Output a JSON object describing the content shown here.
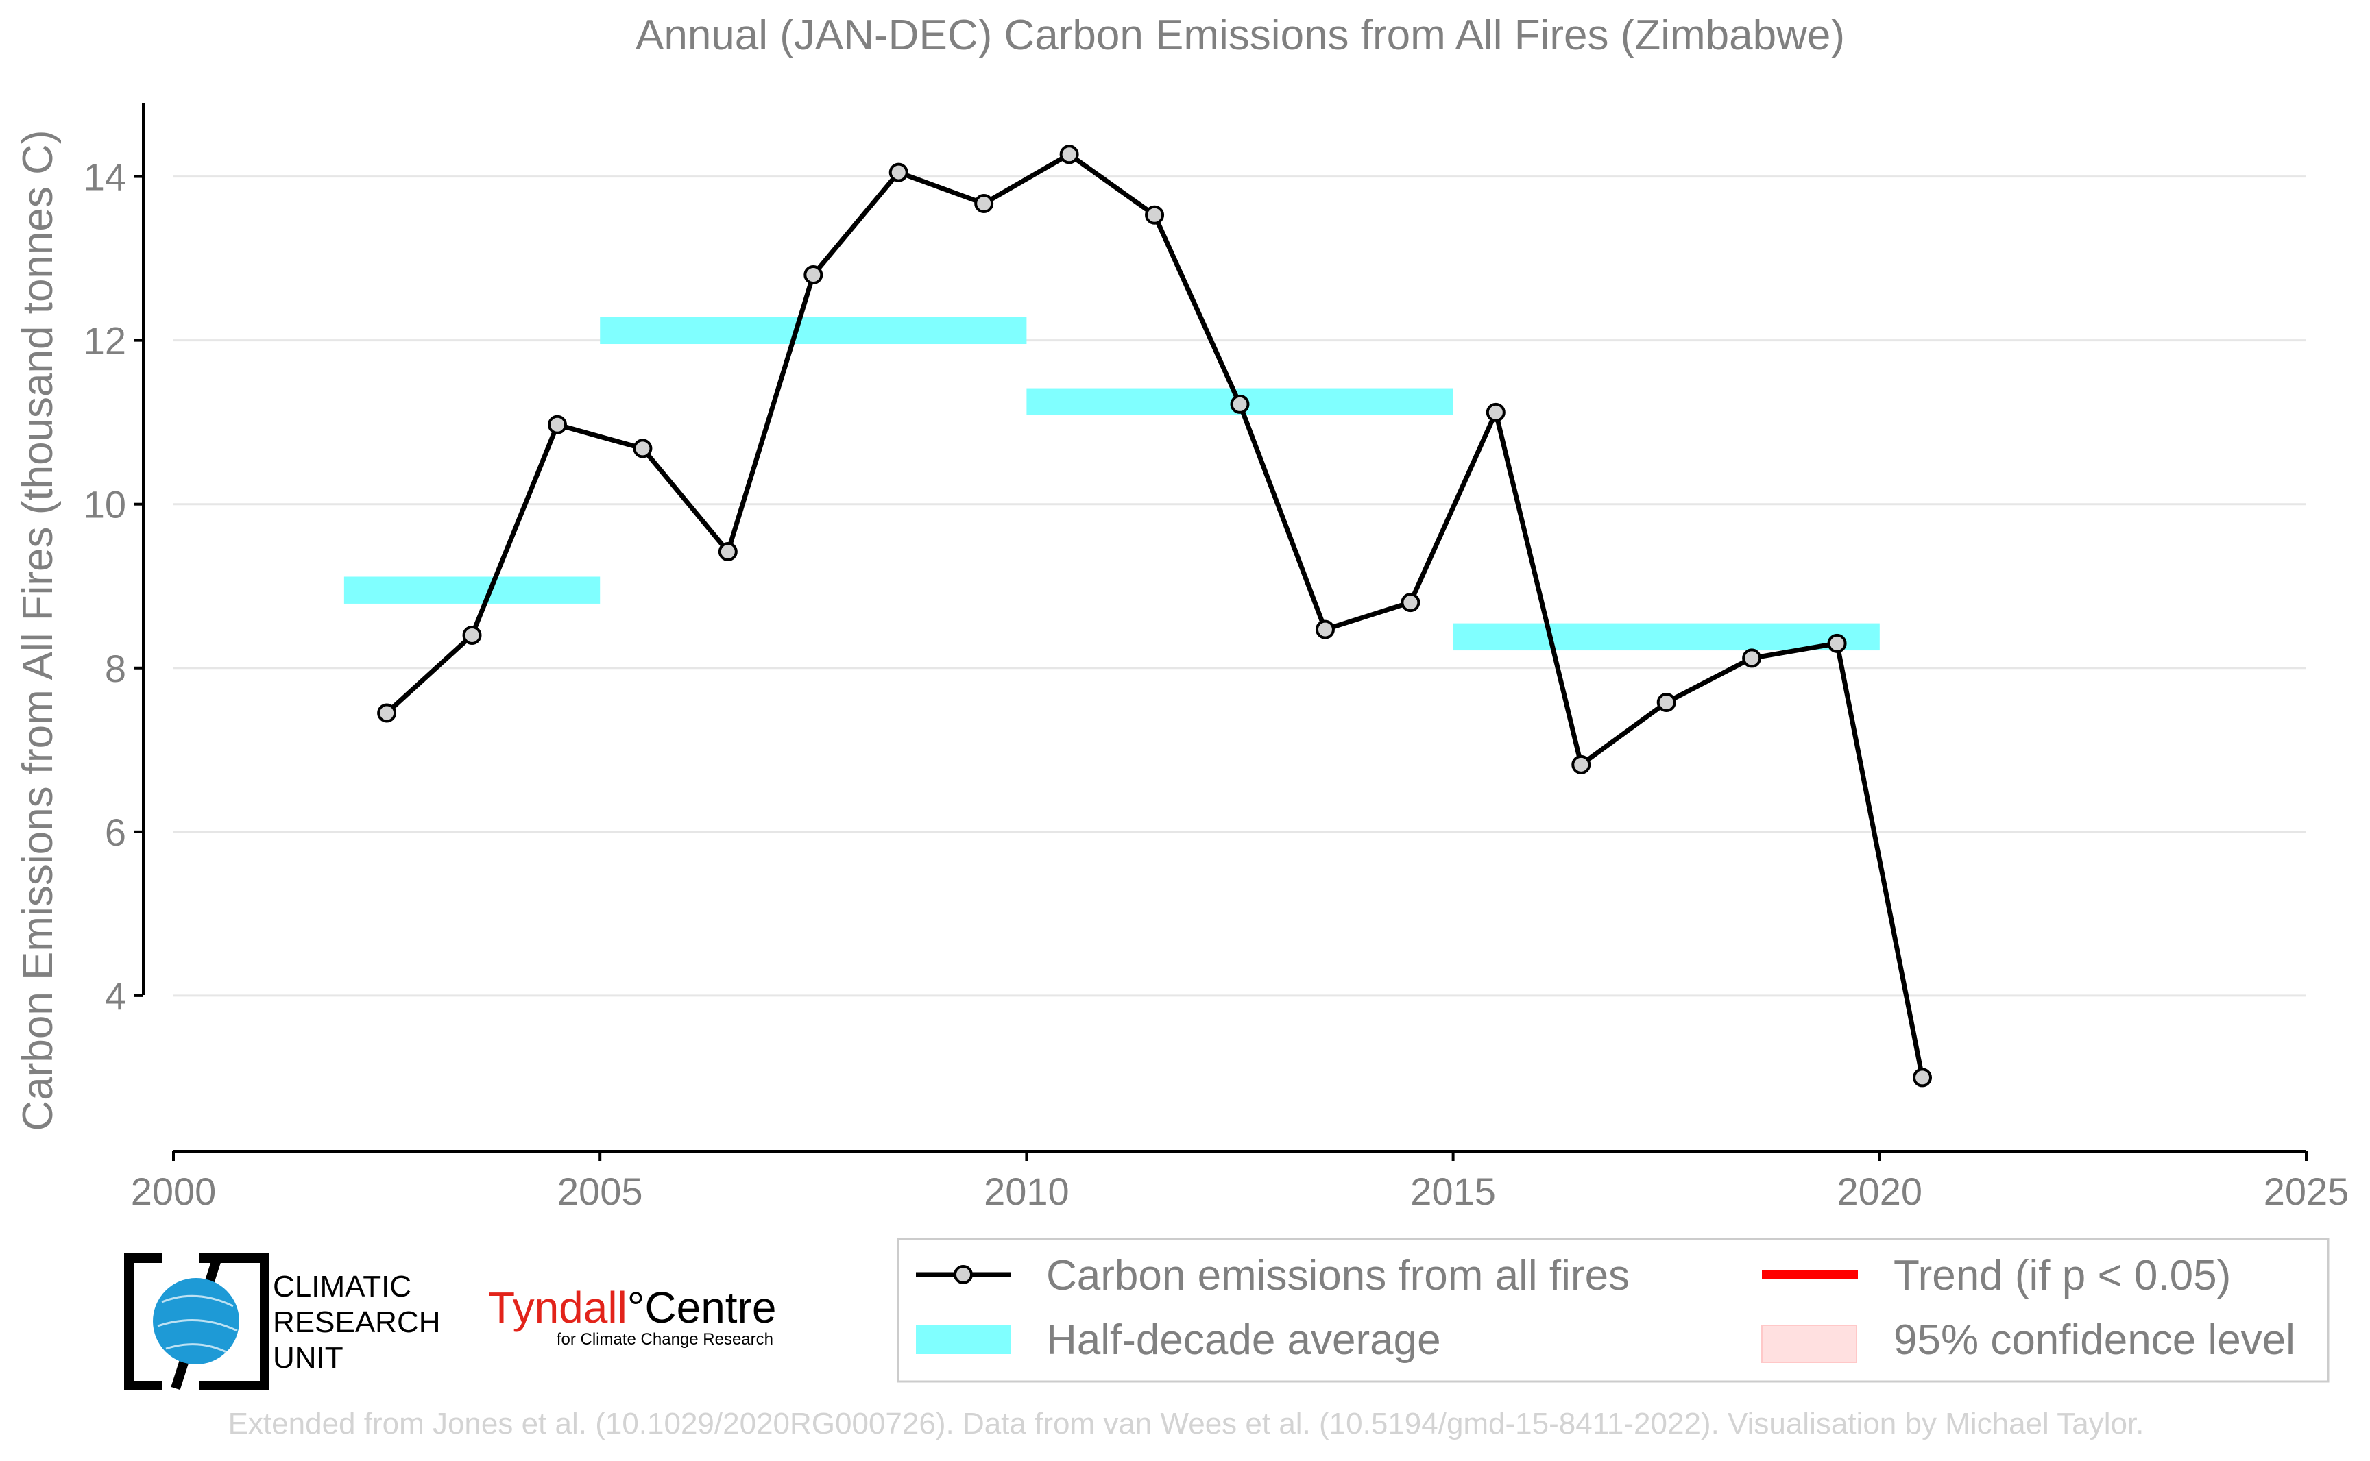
{
  "chart_data": {
    "type": "line",
    "title": "Annual (JAN-DEC) Carbon Emissions from All Fires (Zimbabwe)",
    "ylabel": "Carbon Emissions from All Fires (thousand tonnes C)",
    "xlabel": "",
    "xlim": [
      2000,
      2025
    ],
    "ylim": [
      2.1,
      14.9
    ],
    "x_ticks": [
      2000,
      2005,
      2010,
      2015,
      2020,
      2025
    ],
    "y_ticks": [
      4,
      6,
      8,
      10,
      12,
      14
    ],
    "grid": "horizontal",
    "series": [
      {
        "name": "Carbon emissions from all fires",
        "color": "#000000",
        "marker_fill": "#d3d3d3",
        "x": [
          2002.5,
          2003.5,
          2004.5,
          2005.5,
          2006.5,
          2007.5,
          2008.5,
          2009.5,
          2010.5,
          2011.5,
          2012.5,
          2013.5,
          2014.5,
          2015.5,
          2016.5,
          2017.5,
          2018.5,
          2019.5,
          2020.5
        ],
        "y": [
          7.45,
          8.4,
          10.97,
          10.68,
          9.42,
          12.8,
          14.05,
          13.67,
          14.27,
          13.53,
          11.22,
          8.47,
          8.8,
          11.12,
          6.82,
          7.58,
          8.12,
          8.3,
          3.0
        ]
      }
    ],
    "half_decade_averages": {
      "name": "Half-decade average",
      "color": "#80ffff",
      "segments": [
        {
          "x_start": 2002,
          "x_end": 2005,
          "value": 8.95
        },
        {
          "x_start": 2005,
          "x_end": 2010,
          "value": 12.12
        },
        {
          "x_start": 2010,
          "x_end": 2015,
          "value": 11.25
        },
        {
          "x_start": 2015,
          "x_end": 2020,
          "value": 8.38
        }
      ]
    },
    "legend": {
      "placement": "bottom-right",
      "entries": [
        {
          "label": "Carbon emissions from all fires",
          "style": "line-marker",
          "color": "#000000"
        },
        {
          "label": "Trend (if p < 0.05)",
          "style": "line",
          "color": "#ff0000"
        },
        {
          "label": "Half-decade average",
          "style": "band",
          "color": "#80ffff"
        },
        {
          "label": "95% confidence level",
          "style": "band",
          "color": "#ffe0e0"
        }
      ]
    }
  },
  "logos": {
    "cru_lines": [
      "CLIMATIC",
      "RESEARCH",
      "UNIT"
    ],
    "tyndall_name": "Tyndall",
    "tyndall_degree": "°",
    "tyndall_centre": "Centre",
    "tyndall_sub": "for Climate Change Research"
  },
  "footer": "Extended from Jones et al. (10.1029/2020RG000726). Data from van Wees et al. (10.5194/gmd-15-8411-2022). Visualisation by Michael Taylor."
}
